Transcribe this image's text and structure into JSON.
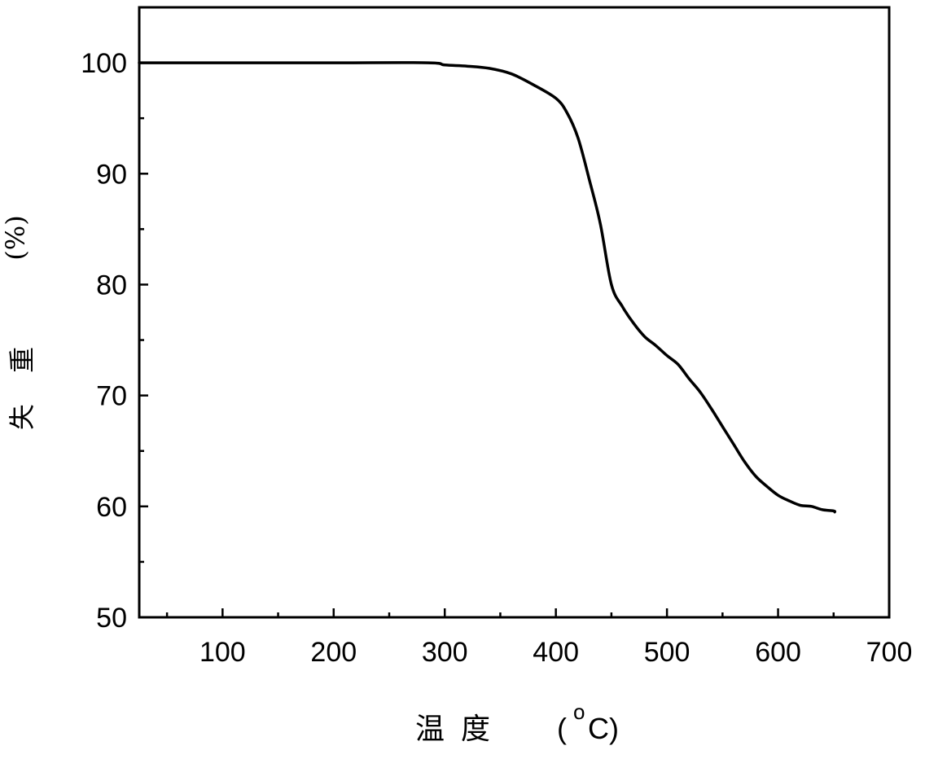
{
  "chart_data": {
    "type": "line",
    "title": "",
    "xlabel": {
      "main": "温  度",
      "open_paren": "(",
      "superscript": "o",
      "unit": "C)"
    },
    "ylabel": {
      "main": "失 重",
      "unit": "(%)"
    },
    "xlim": [
      25,
      700
    ],
    "ylim": [
      50,
      105
    ],
    "x_ticks": [
      100,
      200,
      300,
      400,
      500,
      600,
      700
    ],
    "x_tick_labels": [
      "100",
      "200",
      "300",
      "400",
      "500",
      "600",
      "700"
    ],
    "y_ticks": [
      50,
      60,
      70,
      80,
      90,
      100
    ],
    "y_tick_labels": [
      "50",
      "60",
      "70",
      "80",
      "90",
      "100"
    ],
    "grid": false,
    "legend": "none",
    "series": [
      {
        "color": "#000000",
        "x": [
          25,
          100,
          200,
          285,
          300,
          320,
          340,
          360,
          380,
          400,
          410,
          420,
          430,
          440,
          450,
          460,
          470,
          480,
          490,
          500,
          510,
          520,
          530,
          540,
          550,
          560,
          570,
          580,
          590,
          600,
          610,
          620,
          630,
          640,
          650,
          651
        ],
        "y": [
          100,
          100,
          100,
          100,
          99.8,
          99.7,
          99.5,
          99.0,
          98.0,
          96.8,
          95.5,
          93.2,
          89.5,
          85.5,
          80.0,
          78.0,
          76.5,
          75.3,
          74.5,
          73.6,
          72.8,
          71.5,
          70.3,
          68.8,
          67.2,
          65.6,
          64.0,
          62.7,
          61.8,
          61.0,
          60.5,
          60.1,
          60.0,
          59.7,
          59.6,
          59.5
        ]
      }
    ]
  }
}
